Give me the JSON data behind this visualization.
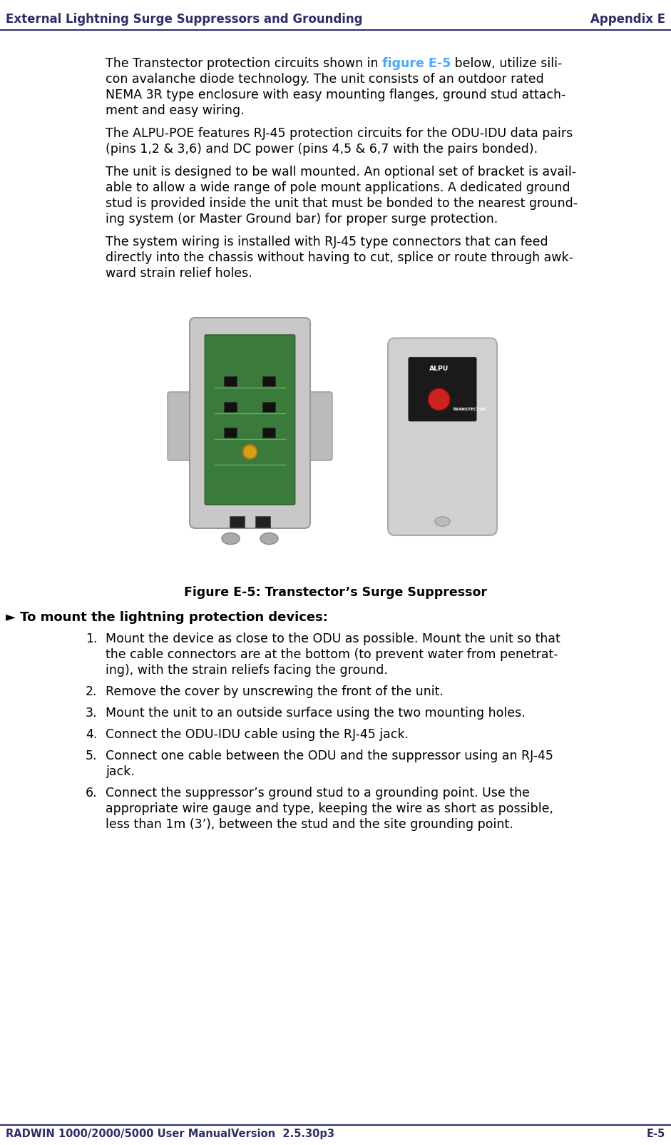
{
  "header_left": "External Lightning Surge Suppressors and Grounding",
  "header_right": "Appendix E",
  "header_color": "#2d2d6b",
  "footer_left": "RADWIN 1000/2000/5000 User ManualVersion  2.5.30p3",
  "footer_right": "E-5",
  "footer_color": "#2d2d6b",
  "para1_prefix": "The Transtector protection circuits shown in ",
  "para1_link": "figure E-5",
  "para1_suffix": " below, utilize sili-\ncon avalanche diode technology. The unit consists of an outdoor rated\nNEMA 3R type enclosure with easy mounting flanges, ground stud attach-\nment and easy wiring.",
  "para2": "The ALPU-POE features RJ-45 protection circuits for the ODU-IDU data pairs\n(pins 1,2 & 3,6) and DC power (pins 4,5 & 6,7 with the pairs bonded).",
  "para3": "The unit is designed to be wall mounted. An optional set of bracket is avail-\nable to allow a wide range of pole mount applications. A dedicated ground\nstud is provided inside the unit that must be bonded to the nearest ground-\ning system (or Master Ground bar) for proper surge protection.",
  "para4": "The system wiring is installed with RJ-45 type connectors that can feed\ndirectly into the chassis without having to cut, splice or route through awk-\nward strain relief holes.",
  "figure_caption": "Figure E-5: Transtector’s Surge Suppressor",
  "section_header": "► To mount the lightning protection devices:",
  "list_items": [
    "Mount the device as close to the ODU as possible. Mount the unit so that\nthe cable connectors are at the bottom (to prevent water from penetrat-\ning), with the strain reliefs facing the ground.",
    "Remove the cover by unscrewing the front of the unit.",
    "Mount the unit to an outside surface using the two mounting holes.",
    "Connect the ODU-IDU cable using the RJ-45 jack.",
    "Connect one cable between the ODU and the suppressor using an RJ-45\njack.",
    "Connect the suppressor’s ground stud to a grounding point. Use the\nappropriate wire gauge and type, keeping the wire as short as possible,\nless than 1m (3’), between the stud and the site grounding point."
  ],
  "text_color": "#000000",
  "link_color": "#4da6ff",
  "section_header_color": "#000000",
  "bg_color": "#ffffff",
  "page_width": 9.41,
  "page_height": 16.04,
  "dpi": 100
}
